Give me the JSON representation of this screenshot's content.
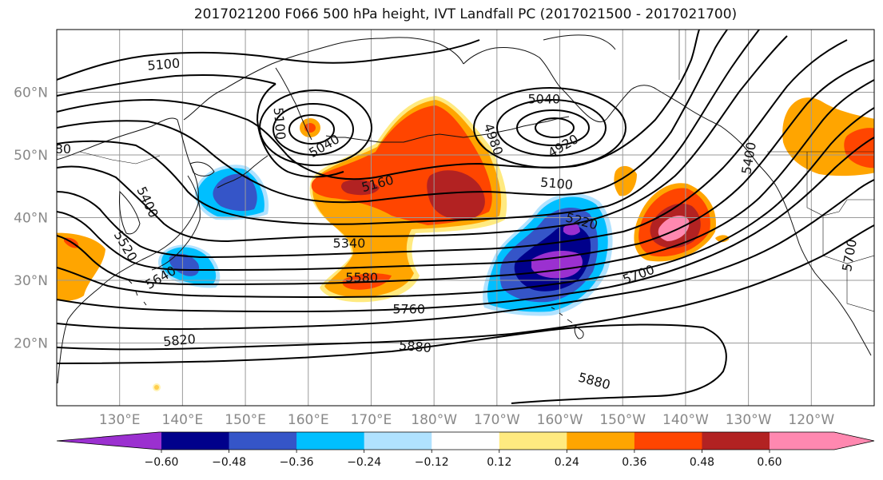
{
  "title": "2017021200 F066 500 hPa height, IVT Landfall PC (2017021500 - 2017021700)",
  "map": {
    "projection": "PlateCarree",
    "lon_range": [
      120,
      250
    ],
    "lat_range": [
      10,
      70
    ],
    "lat_ticks": [
      {
        "value": 20,
        "label": "20°N"
      },
      {
        "value": 30,
        "label": "30°N"
      },
      {
        "value": 40,
        "label": "40°N"
      },
      {
        "value": 50,
        "label": "50°N"
      },
      {
        "value": 60,
        "label": "60°N"
      }
    ],
    "lon_ticks": [
      {
        "value": 130,
        "label": "130°E"
      },
      {
        "value": 140,
        "label": "140°E"
      },
      {
        "value": 150,
        "label": "150°E"
      },
      {
        "value": 160,
        "label": "160°E"
      },
      {
        "value": 170,
        "label": "170°E"
      },
      {
        "value": 180,
        "label": "180°W"
      },
      {
        "value": 190,
        "label": "170°W"
      },
      {
        "value": 200,
        "label": "160°W"
      },
      {
        "value": 210,
        "label": "150°W"
      },
      {
        "value": 220,
        "label": "140°W"
      },
      {
        "value": 230,
        "label": "130°W"
      },
      {
        "value": 240,
        "label": "120°W"
      }
    ],
    "gridlines": true,
    "contour_labels": [
      {
        "text": "5100",
        "lon": 137,
        "lat": 64.5,
        "angle": -5
      },
      {
        "text": "5100",
        "lon": 155.5,
        "lat": 55,
        "angle": 85
      },
      {
        "text": "5040",
        "lon": 162.5,
        "lat": 51.5,
        "angle": -30
      },
      {
        "text": "5040",
        "lon": 197.5,
        "lat": 59,
        "angle": 0
      },
      {
        "text": "4980",
        "lon": 189.5,
        "lat": 52.5,
        "angle": 70
      },
      {
        "text": "4920",
        "lon": 200.5,
        "lat": 51.5,
        "angle": -30
      },
      {
        "text": "5160",
        "lon": 171,
        "lat": 45.5,
        "angle": -15
      },
      {
        "text": "5100",
        "lon": 199.5,
        "lat": 45.5,
        "angle": 5
      },
      {
        "text": "5220",
        "lon": 203.5,
        "lat": 39.5,
        "angle": 15
      },
      {
        "text": "5340",
        "lon": 166.5,
        "lat": 36,
        "angle": 0
      },
      {
        "text": "5400",
        "lon": 134.5,
        "lat": 42.5,
        "angle": 65
      },
      {
        "text": "5520",
        "lon": 131,
        "lat": 35.5,
        "angle": 60
      },
      {
        "text": "5580",
        "lon": 168.5,
        "lat": 30.5,
        "angle": 0
      },
      {
        "text": "5640",
        "lon": 136.5,
        "lat": 30.5,
        "angle": -30
      },
      {
        "text": "5700",
        "lon": 212.5,
        "lat": 31,
        "angle": -20
      },
      {
        "text": "5760",
        "lon": 176,
        "lat": 25.5,
        "angle": 0
      },
      {
        "text": "5820",
        "lon": 139.5,
        "lat": 20.5,
        "angle": -5
      },
      {
        "text": "5880",
        "lon": 177,
        "lat": 19.5,
        "angle": 5
      },
      {
        "text": "5880",
        "lon": 205.5,
        "lat": 14,
        "angle": 15
      },
      {
        "text": "5400",
        "lon": 230,
        "lat": 49.5,
        "angle": -80
      },
      {
        "text": "5700",
        "lon": 246,
        "lat": 34,
        "angle": -80
      },
      {
        "text": "80",
        "lon": 121,
        "lat": 51,
        "angle": 0
      }
    ]
  },
  "colorbar": {
    "ticks": [
      "−0.60",
      "−0.48",
      "−0.36",
      "−0.24",
      "−0.12",
      "0.12",
      "0.24",
      "0.36",
      "0.48",
      "0.60"
    ],
    "colors": [
      "#9b30d0",
      "#00008b",
      "#3555c8",
      "#00bfff",
      "#b0e2ff",
      "#ffffff",
      "#ffea80",
      "#ffa500",
      "#ff4500",
      "#b22222",
      "#ff88b0"
    ]
  },
  "colors": {
    "purple": "#9b30d0",
    "navy": "#00008b",
    "royal": "#3555c8",
    "cyan": "#00bfff",
    "lightblue": "#b0e2ff",
    "yellow": "#ffea80",
    "orange": "#ffa500",
    "redorange": "#ff4500",
    "darkred": "#b22222",
    "pink": "#ff88b0"
  }
}
